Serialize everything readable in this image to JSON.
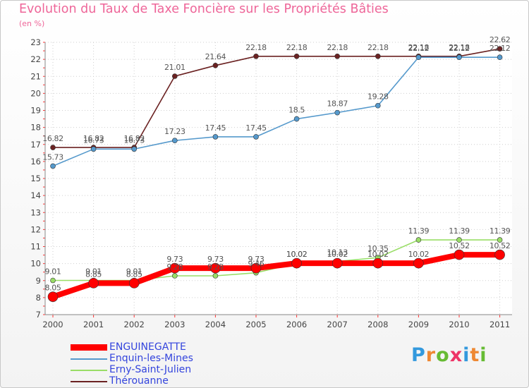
{
  "header": {
    "title": "Evolution du Taux de Taxe Foncière sur les Propriétés Bâties",
    "unit": "(en %)"
  },
  "brand": {
    "letters": [
      "P",
      "r",
      "o",
      "x",
      "i",
      "t",
      "i"
    ],
    "colors": [
      "#3399dd",
      "#ee8833",
      "#66bb33",
      "#ee3366",
      "#3399dd",
      "#ee8833",
      "#66bb33"
    ]
  },
  "chart_data": {
    "type": "line",
    "title": "Evolution du Taux de Taxe Foncière sur les Propriétés Bâties",
    "xlabel": "",
    "ylabel": "(en %)",
    "ylim": [
      7,
      23
    ],
    "yticks": [
      "7",
      "8",
      "9",
      "10",
      "11",
      "12",
      "13",
      "14",
      "15",
      "16",
      "17",
      "18",
      "19",
      "20",
      "21",
      "22",
      "23"
    ],
    "categories": [
      "2000",
      "2001",
      "2002",
      "2003",
      "2004",
      "2005",
      "2006",
      "2007",
      "2008",
      "2009",
      "2010",
      "2011"
    ],
    "series": [
      {
        "name": "Thérouanne",
        "color": "#6b2222",
        "values": [
          16.82,
          16.82,
          16.82,
          21.01,
          21.64,
          22.18,
          22.18,
          22.18,
          22.18,
          22.18,
          22.18,
          22.62
        ],
        "labels": [
          "16.82",
          "16.82",
          "16.82",
          "21.01",
          "21.64",
          "22.18",
          "22.18",
          "22.18",
          "22.18",
          "22.18",
          "22.18",
          "22.62"
        ]
      },
      {
        "name": "Enquin-les-Mines",
        "color": "#5599cc",
        "values": [
          15.73,
          16.73,
          16.73,
          17.23,
          17.45,
          17.45,
          18.5,
          18.87,
          19.28,
          22.12,
          22.12,
          22.12
        ],
        "labels": [
          "15.73",
          "16.73",
          "16.73",
          "17.23",
          "17.45",
          "17.45",
          "18.5",
          "18.87",
          "19.28",
          "22.12",
          "22.12",
          "22.12"
        ]
      },
      {
        "name": "Erny-Saint-Julien",
        "color": "#99dd66",
        "values": [
          9.01,
          9.01,
          9.01,
          9.28,
          9.28,
          9.46,
          10.02,
          10.13,
          10.35,
          11.39,
          11.39,
          11.39
        ],
        "labels": [
          "9.01",
          "9.01",
          "9.01",
          "9.28",
          "9.28",
          "9.46",
          "10.02",
          "10.13",
          "10.35",
          "11.39",
          "11.39",
          "11.39"
        ]
      },
      {
        "name": "ENGUINEGATTE",
        "color": "#ff0000",
        "values": [
          8.05,
          8.85,
          8.85,
          9.73,
          9.73,
          9.73,
          10.02,
          10.02,
          10.02,
          10.02,
          10.52,
          10.52
        ],
        "labels": [
          "8.05",
          "8.85",
          "8.85",
          "9.73",
          "9.73",
          "9.73",
          "10.02",
          "10.02",
          "10.02",
          "10.02",
          "10.52",
          "10.52"
        ]
      }
    ],
    "legend": [
      {
        "name": "ENGUINEGATTE",
        "color": "#ff0000"
      },
      {
        "name": "Enquin-les-Mines",
        "color": "#5599cc"
      },
      {
        "name": "Erny-Saint-Julien",
        "color": "#99dd66"
      },
      {
        "name": "Thérouanne",
        "color": "#6b2222"
      }
    ],
    "legend_position": "bottom-left"
  }
}
